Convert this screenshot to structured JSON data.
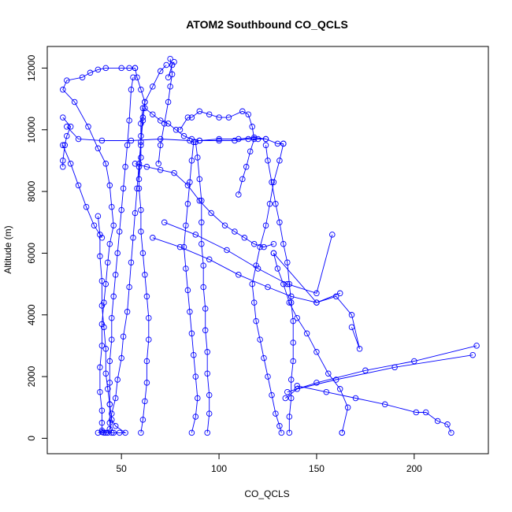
{
  "chart_data": {
    "type": "line",
    "title": "ATOM2 Southbound CO_QCLS",
    "xlabel": "CO_QCLS",
    "ylabel": "Altitude (m)",
    "xlim": [
      12,
      238
    ],
    "ylim": [
      -500,
      12700
    ],
    "x_ticks": [
      50,
      100,
      150,
      200
    ],
    "y_ticks": [
      0,
      2000,
      4000,
      6000,
      8000,
      10000,
      12000
    ],
    "grid": false,
    "legend": "none",
    "series_color": "#0000ff",
    "series": [
      {
        "values": [
          [
            42,
            180
          ],
          [
            44,
            300
          ],
          [
            45,
            800
          ],
          [
            47,
            1300
          ],
          [
            48,
            1900
          ],
          [
            50,
            2600
          ],
          [
            51,
            3300
          ],
          [
            53,
            4100
          ],
          [
            54,
            4900
          ],
          [
            55,
            5700
          ],
          [
            56,
            6500
          ],
          [
            57,
            7300
          ],
          [
            58,
            8100
          ],
          [
            59,
            8900
          ],
          [
            60,
            9600
          ],
          [
            61,
            10300
          ],
          [
            62,
            10900
          ],
          [
            60,
            11300
          ],
          [
            58,
            11700
          ],
          [
            57,
            12000
          ]
        ]
      },
      {
        "values": [
          [
            57,
            12000
          ],
          [
            54,
            12000
          ],
          [
            50,
            12000
          ],
          [
            42,
            12000
          ],
          [
            38,
            11950
          ],
          [
            34,
            11850
          ],
          [
            30,
            11700
          ],
          [
            22,
            11600
          ],
          [
            20,
            11300
          ],
          [
            26,
            10900
          ],
          [
            33,
            10100
          ],
          [
            38,
            9400
          ],
          [
            42,
            8900
          ],
          [
            44,
            8200
          ],
          [
            45,
            7500
          ],
          [
            46,
            6900
          ],
          [
            44,
            6300
          ],
          [
            43,
            5700
          ],
          [
            42,
            5000
          ],
          [
            41,
            4400
          ],
          [
            40,
            3700
          ],
          [
            40,
            3000
          ],
          [
            39,
            2300
          ],
          [
            39,
            1500
          ],
          [
            40,
            900
          ],
          [
            40,
            500
          ],
          [
            40,
            200
          ],
          [
            41,
            180
          ]
        ]
      },
      {
        "values": [
          [
            56,
            11700
          ],
          [
            55,
            11300
          ],
          [
            54,
            10300
          ],
          [
            53,
            9500
          ],
          [
            52,
            8800
          ],
          [
            51,
            8100
          ],
          [
            50,
            7400
          ],
          [
            49,
            6700
          ],
          [
            48,
            6000
          ],
          [
            47,
            5300
          ],
          [
            46,
            4600
          ],
          [
            45,
            3900
          ],
          [
            45,
            3200
          ],
          [
            44,
            2500
          ],
          [
            44,
            1800
          ],
          [
            44,
            1100
          ],
          [
            44,
            500
          ],
          [
            45,
            180
          ]
        ]
      },
      {
        "values": [
          [
            60,
            180
          ],
          [
            61,
            600
          ],
          [
            62,
            1200
          ],
          [
            63,
            1800
          ],
          [
            63,
            2500
          ],
          [
            64,
            3200
          ],
          [
            64,
            3900
          ],
          [
            63,
            4600
          ],
          [
            62,
            5300
          ],
          [
            61,
            6000
          ],
          [
            60,
            6700
          ],
          [
            60,
            7400
          ],
          [
            59,
            8100
          ],
          [
            59,
            8800
          ],
          [
            60,
            9500
          ],
          [
            60,
            10200
          ],
          [
            61,
            10700
          ]
        ]
      },
      {
        "values": [
          [
            62,
            10700
          ],
          [
            66,
            10500
          ],
          [
            70,
            10300
          ],
          [
            74,
            10200
          ],
          [
            78,
            10000
          ],
          [
            82,
            9800
          ],
          [
            86,
            9700
          ],
          [
            90,
            9650
          ],
          [
            100,
            9650
          ],
          [
            108,
            9650
          ],
          [
            115,
            9700
          ],
          [
            120,
            9700
          ],
          [
            124,
            9700
          ],
          [
            130,
            9550
          ],
          [
            133,
            9550
          ]
        ]
      },
      {
        "values": [
          [
            133,
            9550
          ],
          [
            131,
            9000
          ],
          [
            128,
            8300
          ],
          [
            126,
            7600
          ],
          [
            124,
            6900
          ],
          [
            121,
            6200
          ],
          [
            119,
            5600
          ],
          [
            117,
            5000
          ],
          [
            118,
            4400
          ],
          [
            119,
            3800
          ],
          [
            121,
            3200
          ],
          [
            123,
            2600
          ],
          [
            125,
            2000
          ],
          [
            127,
            1400
          ],
          [
            129,
            800
          ],
          [
            131,
            400
          ],
          [
            132,
            180
          ]
        ]
      },
      {
        "values": [
          [
            136,
            180
          ],
          [
            136,
            700
          ],
          [
            137,
            1300
          ],
          [
            137,
            1900
          ],
          [
            138,
            2500
          ],
          [
            138,
            3100
          ],
          [
            138,
            3800
          ],
          [
            137,
            4400
          ],
          [
            136,
            5000
          ],
          [
            135,
            5700
          ],
          [
            133,
            6300
          ],
          [
            131,
            7000
          ],
          [
            129,
            7600
          ],
          [
            127,
            8300
          ],
          [
            125,
            9000
          ],
          [
            124,
            9500
          ]
        ]
      },
      {
        "values": [
          [
            124,
            9700
          ],
          [
            118,
            9750
          ],
          [
            110,
            9700
          ],
          [
            100,
            9700
          ],
          [
            90,
            9650
          ],
          [
            87,
            9600
          ],
          [
            86,
            9000
          ],
          [
            85,
            8300
          ],
          [
            84,
            7600
          ],
          [
            83,
            6900
          ],
          [
            82,
            6200
          ],
          [
            83,
            5500
          ],
          [
            84,
            4800
          ],
          [
            85,
            4100
          ],
          [
            86,
            3400
          ],
          [
            87,
            2700
          ],
          [
            88,
            2000
          ],
          [
            89,
            1300
          ],
          [
            88,
            700
          ],
          [
            86,
            180
          ]
        ]
      },
      {
        "values": [
          [
            94,
            180
          ],
          [
            95,
            800
          ],
          [
            95,
            1400
          ],
          [
            94,
            2100
          ],
          [
            94,
            2800
          ],
          [
            93,
            3500
          ],
          [
            93,
            4200
          ],
          [
            92,
            4900
          ],
          [
            92,
            5600
          ],
          [
            91,
            6300
          ],
          [
            91,
            7000
          ],
          [
            91,
            7700
          ],
          [
            90,
            8400
          ],
          [
            89,
            9100
          ],
          [
            88,
            9600
          ]
        ]
      },
      {
        "values": [
          [
            163,
            180
          ],
          [
            163,
            180
          ],
          [
            166,
            1000
          ],
          [
            162,
            1600
          ],
          [
            156,
            2100
          ],
          [
            150,
            2800
          ],
          [
            145,
            3400
          ],
          [
            140,
            3900
          ],
          [
            136,
            4400
          ],
          [
            133,
            5000
          ],
          [
            130,
            5500
          ],
          [
            128,
            6000
          ]
        ]
      },
      {
        "values": [
          [
            128,
            6000
          ],
          [
            150,
            4400
          ],
          [
            160,
            4600
          ],
          [
            168,
            4000
          ],
          [
            172,
            2900
          ],
          [
            168,
            3600
          ]
        ]
      },
      {
        "values": [
          [
            232,
            3000
          ],
          [
            200,
            2500
          ],
          [
            175,
            2200
          ],
          [
            150,
            1800
          ],
          [
            135,
            1500
          ]
        ]
      },
      {
        "values": [
          [
            230,
            2700
          ],
          [
            190,
            2300
          ],
          [
            160,
            1900
          ],
          [
            140,
            1600
          ],
          [
            134,
            1300
          ]
        ]
      },
      {
        "values": [
          [
            219,
            180
          ],
          [
            217,
            450
          ],
          [
            212,
            560
          ],
          [
            206,
            840
          ],
          [
            201,
            840
          ],
          [
            185,
            1100
          ],
          [
            170,
            1300
          ],
          [
            155,
            1500
          ],
          [
            140,
            1700
          ]
        ]
      },
      {
        "values": [
          [
            66,
            6500
          ],
          [
            80,
            6200
          ],
          [
            95,
            5800
          ],
          [
            110,
            5300
          ],
          [
            125,
            4900
          ],
          [
            137,
            4600
          ],
          [
            150,
            4400
          ],
          [
            162,
            4700
          ]
        ]
      },
      {
        "values": [
          [
            72,
            7000
          ],
          [
            88,
            6600
          ],
          [
            104,
            6100
          ],
          [
            120,
            5500
          ],
          [
            135,
            5000
          ],
          [
            150,
            4700
          ],
          [
            158,
            6600
          ]
        ]
      },
      {
        "values": [
          [
            22,
            10100
          ],
          [
            28,
            9700
          ],
          [
            40,
            9650
          ],
          [
            55,
            9650
          ],
          [
            70,
            9700
          ],
          [
            85,
            9650
          ]
        ]
      },
      {
        "values": [
          [
            20,
            9500
          ],
          [
            24,
            8900
          ],
          [
            28,
            8200
          ],
          [
            32,
            7500
          ],
          [
            36,
            6900
          ],
          [
            40,
            6500
          ]
        ]
      },
      {
        "values": [
          [
            20,
            10400
          ],
          [
            24,
            10100
          ],
          [
            22,
            9800
          ],
          [
            21,
            9500
          ],
          [
            20,
            9000
          ],
          [
            20,
            8800
          ]
        ]
      },
      {
        "values": [
          [
            38,
            180
          ],
          [
            40,
            250
          ],
          [
            43,
            180
          ],
          [
            46,
            180
          ],
          [
            49,
            180
          ],
          [
            52,
            180
          ],
          [
            47,
            400
          ],
          [
            45,
            600
          ],
          [
            44,
            1100
          ],
          [
            43,
            1600
          ],
          [
            42,
            2100
          ],
          [
            42,
            2900
          ],
          [
            41,
            3600
          ],
          [
            40,
            4300
          ],
          [
            40,
            5100
          ],
          [
            39,
            5900
          ],
          [
            39,
            6600
          ],
          [
            38,
            7200
          ]
        ]
      },
      {
        "values": [
          [
            57,
            8900
          ],
          [
            63,
            8800
          ],
          [
            70,
            8700
          ],
          [
            77,
            8600
          ],
          [
            84,
            8200
          ],
          [
            90,
            7700
          ],
          [
            96,
            7300
          ],
          [
            103,
            6900
          ],
          [
            108,
            6700
          ],
          [
            113,
            6500
          ],
          [
            118,
            6300
          ],
          [
            123,
            6200
          ],
          [
            128,
            6300
          ]
        ]
      },
      {
        "values": [
          [
            80,
            10000
          ],
          [
            84,
            10400
          ],
          [
            86,
            10400
          ],
          [
            90,
            10600
          ],
          [
            95,
            10500
          ],
          [
            100,
            10400
          ],
          [
            105,
            10400
          ],
          [
            112,
            10600
          ],
          [
            115,
            10500
          ],
          [
            117,
            10100
          ],
          [
            118,
            9700
          ],
          [
            116,
            9300
          ],
          [
            114,
            8800
          ],
          [
            112,
            8400
          ],
          [
            110,
            7900
          ]
        ]
      },
      {
        "values": [
          [
            73,
            12100
          ],
          [
            70,
            11900
          ],
          [
            66,
            11400
          ],
          [
            62,
            10900
          ],
          [
            61,
            10400
          ],
          [
            60,
            9800
          ],
          [
            60,
            9100
          ],
          [
            59,
            8400
          ]
        ]
      },
      {
        "values": [
          [
            75,
            12300
          ],
          [
            76,
            11800
          ],
          [
            75,
            11400
          ],
          [
            74,
            10900
          ],
          [
            72,
            10200
          ],
          [
            70,
            9500
          ],
          [
            69,
            8900
          ]
        ]
      },
      {
        "values": [
          [
            77,
            12200
          ],
          [
            76,
            12100
          ],
          [
            74,
            11700
          ]
        ]
      }
    ]
  }
}
